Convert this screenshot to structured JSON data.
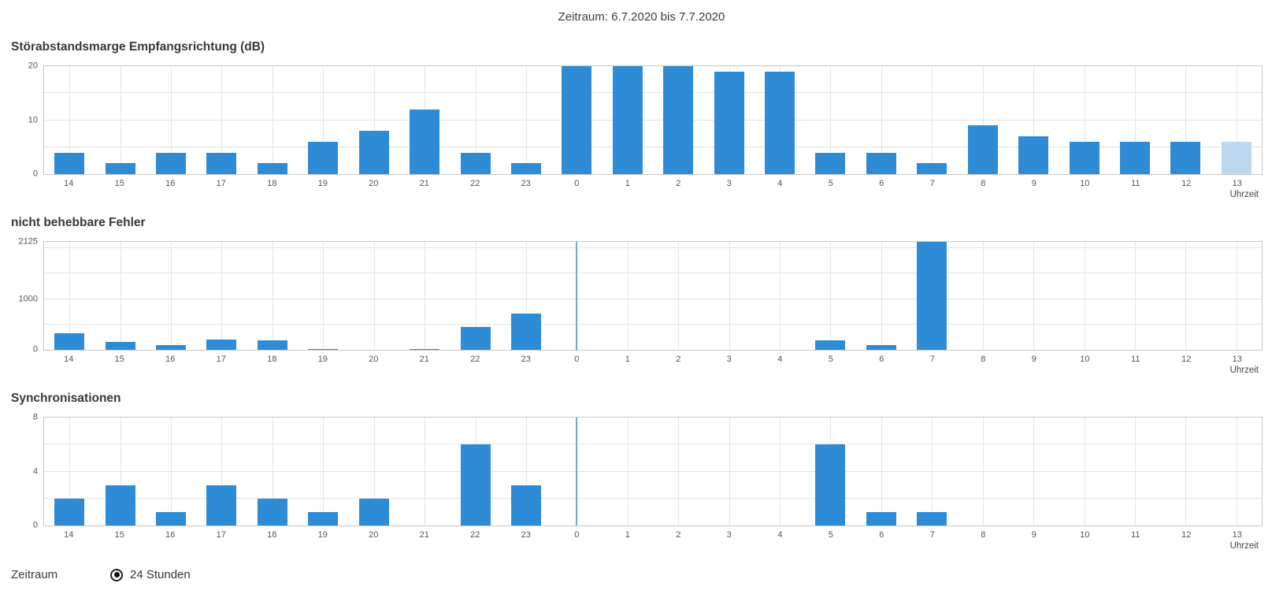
{
  "header": {
    "title": "Zeitraum: 6.7.2020 bis 7.7.2020"
  },
  "colors": {
    "bar": "#2d8cd5",
    "bar_highlight": "#bcd8ee",
    "day_separator": "#69a8db",
    "grid": "#e4e4e4",
    "plot_border": "#c8c8c8"
  },
  "chart_data": [
    {
      "type": "bar",
      "id": "snr-margin",
      "title": "Störabstandsmarge Empfangsrichtung (dB)",
      "xlabel": "Uhrzeit",
      "categories": [
        "14",
        "15",
        "16",
        "17",
        "18",
        "19",
        "20",
        "21",
        "22",
        "23",
        "0",
        "1",
        "2",
        "3",
        "4",
        "5",
        "6",
        "7",
        "8",
        "9",
        "10",
        "11",
        "12",
        "13"
      ],
      "values": [
        4,
        2,
        4,
        4,
        2,
        6,
        8,
        12,
        4,
        2,
        20,
        20,
        20,
        19,
        19,
        4,
        4,
        2,
        9,
        7,
        6,
        6,
        6,
        6
      ],
      "ylim": [
        0,
        20
      ],
      "yticks": [
        0,
        10,
        20
      ],
      "grid_step": 5,
      "grid": true,
      "highlight_last_bar": true,
      "day_separator_index": 10
    },
    {
      "type": "bar",
      "id": "uncorrectable-errors",
      "title": "nicht behebbare Fehler",
      "xlabel": "Uhrzeit",
      "categories": [
        "14",
        "15",
        "16",
        "17",
        "18",
        "19",
        "20",
        "21",
        "22",
        "23",
        "0",
        "1",
        "2",
        "3",
        "4",
        "5",
        "6",
        "7",
        "8",
        "9",
        "10",
        "11",
        "12",
        "13"
      ],
      "values": [
        330,
        160,
        95,
        200,
        185,
        3,
        0,
        6,
        450,
        720,
        0,
        0,
        0,
        0,
        0,
        185,
        95,
        2125,
        0,
        0,
        0,
        0,
        0,
        0
      ],
      "ylim": [
        0,
        2125
      ],
      "yticks": [
        0,
        1000,
        2125
      ],
      "grid_step": 500,
      "grid": true,
      "highlight_last_bar": false,
      "day_separator_index": 10
    },
    {
      "type": "bar",
      "id": "synchronisations",
      "title": "Synchronisationen",
      "xlabel": "Uhrzeit",
      "categories": [
        "14",
        "15",
        "16",
        "17",
        "18",
        "19",
        "20",
        "21",
        "22",
        "23",
        "0",
        "1",
        "2",
        "3",
        "4",
        "5",
        "6",
        "7",
        "8",
        "9",
        "10",
        "11",
        "12",
        "13"
      ],
      "values": [
        2,
        3,
        1,
        3,
        2,
        1,
        2,
        0,
        6,
        3,
        0,
        0,
        0,
        0,
        0,
        6,
        1,
        1,
        0,
        0,
        0,
        0,
        0,
        0
      ],
      "ylim": [
        0,
        8
      ],
      "yticks": [
        0,
        4,
        8
      ],
      "grid_step": 2,
      "grid": true,
      "highlight_last_bar": false,
      "day_separator_index": 10
    }
  ],
  "controls": {
    "label": "Zeitraum",
    "options": [
      {
        "label": "24 Stunden",
        "selected": true
      }
    ]
  }
}
